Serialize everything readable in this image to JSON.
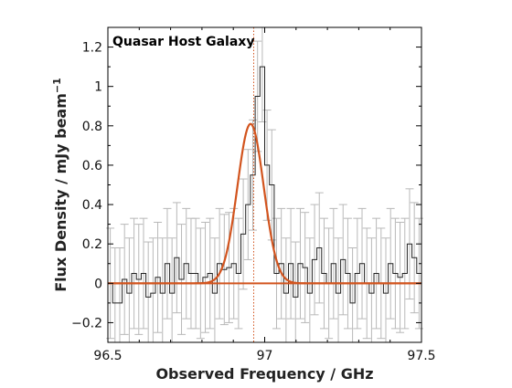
{
  "chart_data": {
    "type": "line",
    "title": "",
    "annotation": "Quasar Host Galaxy",
    "xlabel": "Observed Frequency / GHz",
    "ylabel_main": "Flux Density / mJy beam",
    "ylabel_sup": "−1",
    "xlim": [
      96.5,
      97.5
    ],
    "ylim": [
      -0.3,
      1.3
    ],
    "x_ticks": [
      96.5,
      97,
      97.5
    ],
    "x_tick_labels": [
      "96.5",
      "97",
      "97.5"
    ],
    "y_ticks": [
      -0.2,
      0,
      0.2,
      0.4,
      0.6,
      0.8,
      1,
      1.2
    ],
    "y_tick_labels": [
      "−0.2",
      "0",
      "0.2",
      "0.4",
      "0.6",
      "0.8",
      "1",
      "1.2"
    ],
    "grid": false,
    "colors": {
      "fit": "#d2541e",
      "data": "#222222",
      "errorbar": "#b8b8b8",
      "zero_line": "#d2541e",
      "center_marker": "#d2541e"
    },
    "center_marker_x": 96.965,
    "series": [
      {
        "kind": "histogram-step",
        "bin_width": 0.01515,
        "x_start": 96.5,
        "values": [
          0.0,
          -0.1,
          -0.1,
          0.02,
          -0.05,
          0.05,
          0.02,
          0.05,
          -0.07,
          -0.05,
          0.03,
          -0.05,
          0.1,
          -0.05,
          0.13,
          0.02,
          0.1,
          0.05,
          0.05,
          0.0,
          0.03,
          0.05,
          -0.05,
          0.1,
          0.07,
          0.08,
          0.1,
          0.05,
          0.25,
          0.4,
          0.55,
          0.95,
          1.1,
          0.6,
          0.5,
          0.05,
          0.1,
          -0.05,
          0.1,
          -0.07,
          0.1,
          0.08,
          -0.05,
          0.12,
          0.18,
          0.05,
          0.0,
          0.1,
          -0.05,
          0.12,
          0.05,
          -0.1,
          0.05,
          0.1,
          0.0,
          -0.05,
          0.05,
          0.0,
          -0.05,
          0.1,
          0.05,
          0.03,
          0.05,
          0.2,
          0.13,
          0.05
        ],
        "error": 0.28
      },
      {
        "kind": "gaussian-fit",
        "amplitude": 0.81,
        "center": 96.955,
        "sigma": 0.042,
        "baseline": 0.0
      }
    ]
  }
}
